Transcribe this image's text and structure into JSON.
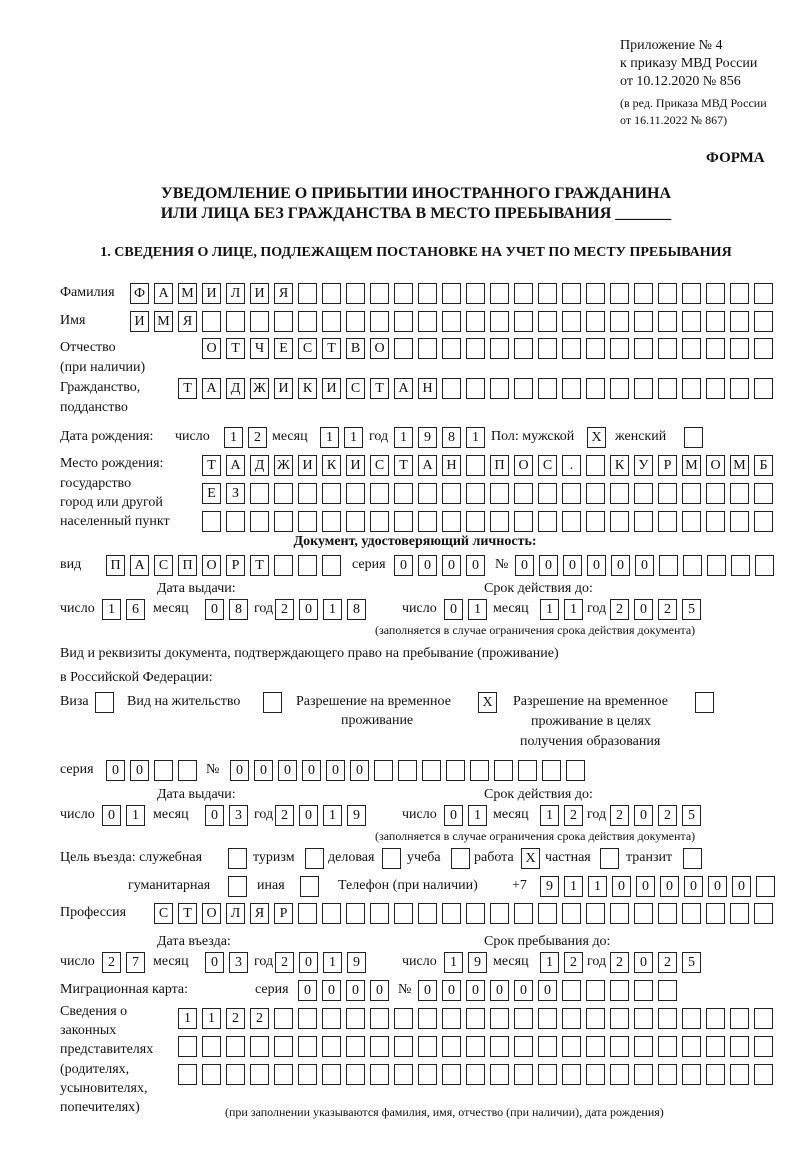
{
  "header": {
    "appendix": "Приложение № 4",
    "order": "к приказу МВД России",
    "order_date": "от 10.12.2020 № 856",
    "edition1": "(в ред. Приказа МВД России",
    "edition2": "от 16.11.2022 № 867)",
    "form": "ФОРМА"
  },
  "title": {
    "line1": "УВЕДОМЛЕНИЕ О ПРИБЫТИИ ИНОСТРАННОГО ГРАЖДАНИНА",
    "line2": "ИЛИ ЛИЦА БЕЗ ГРАЖДАНСТВА В МЕСТО ПРЕБЫВАНИЯ _______"
  },
  "section1": "1. СВЕДЕНИЯ О ЛИЦЕ, ПОДЛЕЖАЩЕМ ПОСТАНОВКЕ НА УЧЕТ ПО МЕСТУ ПРЕБЫВАНИЯ",
  "labels": {
    "surname": "Фамилия",
    "name": "Имя",
    "patronymic": "Отчество",
    "patronymic2": "(при наличии)",
    "citizenship": "Гражданство,",
    "citizenship2": "подданство",
    "dob": "Дата рождения:",
    "day": "число",
    "month": "месяц",
    "year": "год",
    "sex": "Пол: мужской",
    "female": "женский",
    "pob1": "Место рождения:",
    "pob2": "государство",
    "pob3": "город или другой",
    "pob4": "населенный пункт",
    "id_doc": "Документ, удостоверяющий личность:",
    "kind": "вид",
    "series": "серия",
    "number": "№",
    "issue_date": "Дата выдачи:",
    "valid_until": "Срок действия до:",
    "validity_note": "(заполняется в случае ограничения срока действия документа)",
    "right_doc1": "Вид и реквизиты документа, подтверждающего право на пребывание (проживание)",
    "right_doc2": "в Российской Федерации:",
    "visa": "Виза",
    "residence": "Вид на жительство",
    "trp1": "Разрешение на временное",
    "trp2": "проживание",
    "trpe1": "Разрешение на временное",
    "trpe2": "проживание в целях",
    "trpe3": "получения образования",
    "purpose": "Цель въезда: служебная",
    "tourism": "туризм",
    "business": "деловая",
    "study": "учеба",
    "work": "работа",
    "private": "частная",
    "transit": "транзит",
    "humanitarian": "гуманитарная",
    "other": "иная",
    "phone": "Телефон (при наличии)",
    "phone_prefix": "+7",
    "profession": "Профессия",
    "entry_date": "Дата въезда:",
    "stay_until": "Срок пребывания до:",
    "migration_card": "Миграционная карта:",
    "rep1": "Сведения о",
    "rep2": "законных",
    "rep3": "представителях",
    "rep4": "(родителях,",
    "rep5": "усыновителях,",
    "rep6": "попечителях)",
    "rep_note": "(при заполнении указываются фамилия, имя, отчество (при наличии), дата рождения)"
  },
  "fields": {
    "surname": "ФАМИЛИЯ",
    "name": "ИМЯ",
    "patronymic": "ОТЧЕСТВО",
    "citizenship": "ТАДЖИКИСТАН",
    "dob_day": "12",
    "dob_month": "11",
    "dob_year": "1981",
    "sex_male": "X",
    "sex_female": "",
    "pob_line1": "ТАДЖИКИСТАН ПОС. КУРМОМБ",
    "pob_line2": "ЕЗ",
    "pob_line3": "",
    "id_kind": "ПАСПОРТ",
    "id_series": "0000",
    "id_number": "000000",
    "id_issue_day": "16",
    "id_issue_month": "08",
    "id_issue_year": "2018",
    "id_valid_day": "01",
    "id_valid_month": "11",
    "id_valid_year": "2025",
    "visa": "",
    "residence": "",
    "trp": "X",
    "trpe": "",
    "rd_series": "00",
    "rd_number": "000000",
    "rd_issue_day": "01",
    "rd_issue_month": "03",
    "rd_issue_year": "2019",
    "rd_valid_day": "01",
    "rd_valid_month": "12",
    "rd_valid_year": "2025",
    "p_official": "",
    "p_tourism": "",
    "p_business": "",
    "p_study": "",
    "p_work": "X",
    "p_private": "",
    "p_transit": "",
    "p_humanitarian": "",
    "p_other": "",
    "phone": "911000000",
    "profession": "СТОЛЯР",
    "entry_day": "27",
    "entry_month": "03",
    "entry_year": "2019",
    "stay_day": "19",
    "stay_month": "12",
    "stay_year": "2025",
    "mc_series": "0000",
    "mc_number": "000000",
    "rep_line1": "1122",
    "rep_line2": "",
    "rep_line3": ""
  }
}
